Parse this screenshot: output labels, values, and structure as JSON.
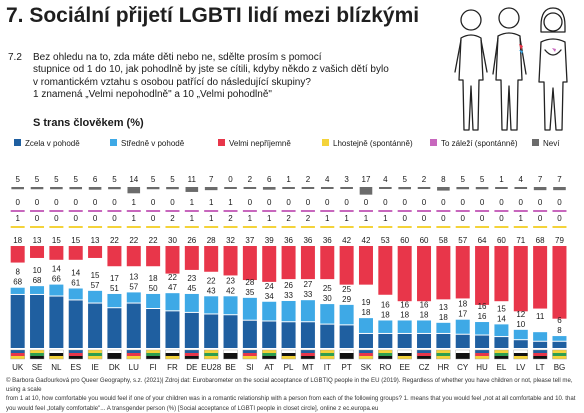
{
  "header": {
    "title": "7. Sociální přijetí LGBTI lidí mezi blízkými",
    "question_number": "7.2",
    "question_lines": [
      "Bez ohledu na to, zda máte děti nebo ne, sdělte prosím s pomocí",
      "stupnice od 1 do 10, jak pohodlně by jste se cítili, kdyby někdo z vašich dětí bylo",
      "v romantickém vztahu s osobou patřící do následující skupiny?",
      "1 znamená „Velmi nepohodlně\" a 10 „Velmi pohodlně\""
    ]
  },
  "footer": {
    "lines": [
      "© Barbora Gaďourková pro Queer Geography, s.z. (2021)| Zdroj dat: Eurobarometer on the social acceptance of LGBTIQ people in the EU (2019). Regardless of whether you have children or not, please tell me, using a scale",
      "from 1 at 10, how comfortable you would feel if one of your children was in a romantic relationship with a person from each of the following groups? 1. means that you would feel „not at all comfortable and 10. that",
      "you would feel „totally comfortable\"... A transgender person (%) [Social acceptance of LGBTI people in closet circle], online z ec.europa.eu"
    ]
  },
  "chart_data": {
    "type": "bar",
    "title": "S trans člověkem (%)",
    "categories": [
      "UK",
      "SE",
      "NL",
      "ES",
      "IE",
      "DK",
      "LU",
      "FI",
      "FR",
      "DE",
      "EU28",
      "BE",
      "SI",
      "AT",
      "PL",
      "MT",
      "IT",
      "PT",
      "SK",
      "RO",
      "EE",
      "CZ",
      "HR",
      "CY",
      "HU",
      "EL",
      "LV",
      "LT",
      "BG"
    ],
    "series": [
      {
        "name": "Zcela v pohodě",
        "color": "#1f5fa0",
        "values": [
          68,
          68,
          66,
          61,
          57,
          51,
          57,
          50,
          47,
          45,
          43,
          42,
          35,
          34,
          33,
          33,
          30,
          29,
          18,
          18,
          18,
          18,
          18,
          17,
          16,
          14,
          10,
          8,
          8
        ]
      },
      {
        "name": "Středně v pohodě",
        "color": "#3ea9e6",
        "values": [
          8,
          10,
          14,
          14,
          15,
          17,
          13,
          18,
          22,
          23,
          22,
          23,
          28,
          24,
          26,
          27,
          25,
          25,
          19,
          16,
          16,
          16,
          13,
          18,
          16,
          15,
          12,
          11,
          6
        ]
      },
      {
        "name": "Velmi nepříjemně",
        "color": "#e8364a",
        "values": [
          18,
          13,
          15,
          15,
          13,
          22,
          22,
          22,
          30,
          26,
          28,
          32,
          37,
          39,
          36,
          36,
          36,
          42,
          42,
          53,
          60,
          60,
          58,
          57,
          64,
          60,
          71,
          68,
          79
        ]
      },
      {
        "name": "Lhostejně (spontánně)",
        "color": "#f4d33a",
        "values": [
          1,
          0,
          0,
          0,
          0,
          0,
          1,
          0,
          2,
          1,
          1,
          2,
          1,
          1,
          2,
          2,
          1,
          1,
          1,
          1,
          0,
          0,
          0,
          0,
          0,
          0,
          1,
          0,
          0
        ]
      },
      {
        "name": "To záleží (spontánně)",
        "color": "#c767bd",
        "values": [
          0,
          0,
          0,
          0,
          0,
          0,
          1,
          0,
          0,
          1,
          1,
          1,
          0,
          0,
          0,
          0,
          0,
          0,
          0,
          0,
          0,
          0,
          0,
          0,
          0,
          0,
          0,
          0,
          0
        ]
      },
      {
        "name": "Neví",
        "color": "#6b6b6b",
        "values": [
          5,
          5,
          5,
          5,
          6,
          5,
          14,
          5,
          5,
          11,
          7,
          0,
          2,
          6,
          1,
          2,
          4,
          3,
          17,
          4,
          5,
          2,
          8,
          5,
          5,
          1,
          4,
          7,
          7
        ]
      }
    ],
    "bar_labels": {
      "Zcela v pohodě": [
        "68",
        "68",
        "66",
        "61",
        "57",
        "51",
        "57",
        "50",
        "47",
        "45",
        "43",
        "42",
        "35",
        "34",
        "33",
        "33",
        "30",
        "29",
        "18",
        "18",
        "18",
        "18",
        "18",
        "17",
        "16",
        "14",
        "10",
        "",
        "8"
      ],
      "Středně v pohodě": [
        "8",
        "10",
        "14",
        "14",
        "15",
        "17",
        "13",
        "18",
        "22",
        "23",
        "22",
        "23",
        "28",
        "24",
        "26",
        "27",
        "25",
        "25",
        "19",
        "16",
        "16",
        "16",
        "13",
        "18",
        "16",
        "15",
        "12",
        "11",
        "6"
      ],
      "Velmi nepříjemně": [
        "18",
        "13",
        "15",
        "15",
        "13",
        "22",
        "22",
        "22",
        "30",
        "26",
        "28",
        "32",
        "37",
        "39",
        "36",
        "36",
        "36",
        "42",
        "42",
        "53",
        "60",
        "60",
        "58",
        "57",
        "64",
        "60",
        "71",
        "68",
        "79"
      ],
      "Lhostejně (spontánně)": [
        "1",
        "0",
        "0",
        "0",
        "0",
        "0",
        "1",
        "0",
        "2",
        "1",
        "1",
        "2",
        "1",
        "1",
        "2",
        "2",
        "1",
        "1",
        "1",
        "1",
        "0",
        "0",
        "0",
        "0",
        "0",
        "0",
        "1",
        "0",
        "0"
      ],
      "To záleží (spontánně)": [
        "0",
        "0",
        "0",
        "0",
        "0",
        "0",
        "1",
        "0",
        "0",
        "1",
        "1",
        "1",
        "0",
        "0",
        "0",
        "0",
        "0",
        "0",
        "0",
        "0",
        "0",
        "0",
        "0",
        "0",
        "0",
        "0",
        "0",
        "0",
        "0"
      ],
      "Neví": [
        "5",
        "5",
        "5",
        "5",
        "6",
        "5",
        "14",
        "5",
        "5",
        "11",
        "7",
        "0",
        "2",
        "6",
        "1",
        "2",
        "4",
        "3",
        "17",
        "4",
        "5",
        "2",
        "8",
        "5",
        "5",
        "1",
        "4",
        "7",
        "7"
      ]
    },
    "legend_position": "top",
    "grid": false,
    "ylim": [
      0,
      100
    ]
  }
}
